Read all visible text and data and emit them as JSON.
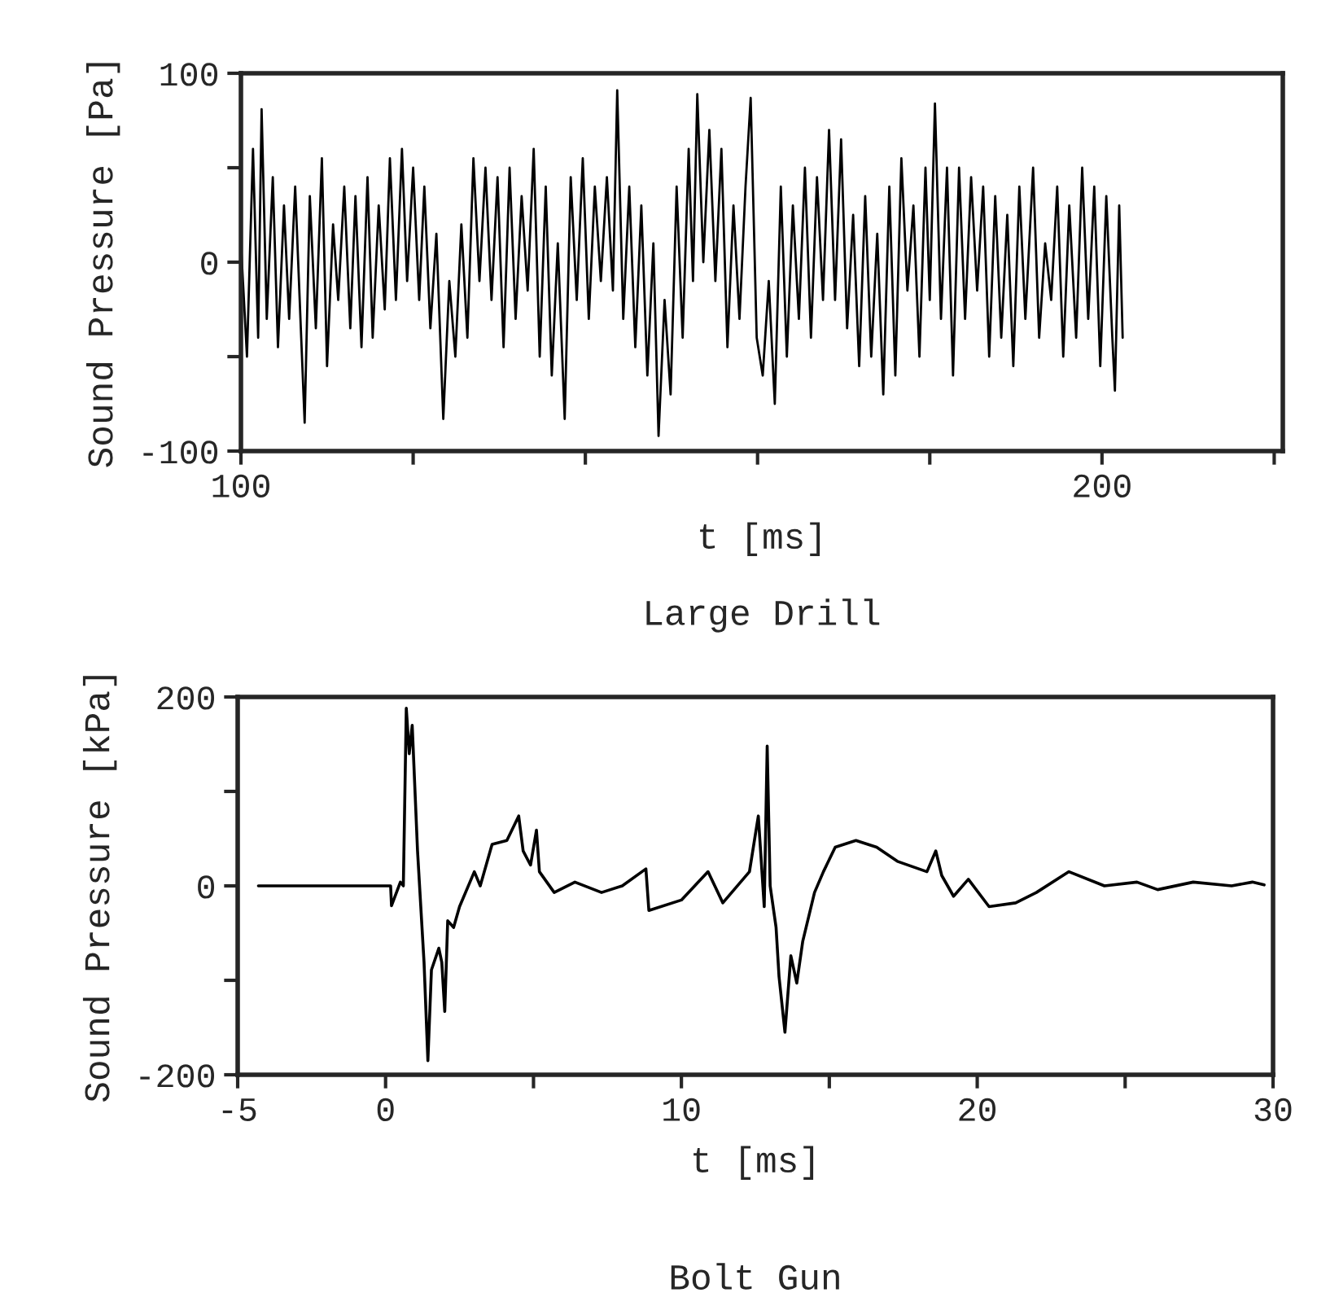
{
  "chart_data": [
    {
      "type": "line",
      "title": "Large Drill",
      "xlabel": "t [ms]",
      "ylabel": "Sound Pressure [Pa]",
      "xlim": [
        100,
        221
      ],
      "xticks": [
        100,
        {
          "value": 120,
          "label": null
        },
        {
          "value": 140,
          "label": null
        },
        {
          "value": 160,
          "label": null
        },
        {
          "value": 180,
          "label": null
        },
        200,
        {
          "value": 220,
          "label": null
        }
      ],
      "ylim": [
        -100,
        100
      ],
      "yticks": [
        -100,
        {
          "value": -50,
          "label": null
        },
        0,
        {
          "value": 50,
          "label": null
        },
        100
      ],
      "grid": false,
      "legend": false,
      "series": [
        {
          "color": "#000000",
          "x": [
            100.0,
            100.7,
            101.4,
            102.0,
            102.4,
            103.0,
            103.7,
            104.3,
            105.0,
            105.6,
            106.3,
            107.0,
            107.4,
            108.0,
            108.7,
            109.4,
            110.0,
            110.7,
            111.3,
            112.0,
            112.7,
            113.3,
            114.0,
            114.7,
            115.3,
            116.0,
            116.7,
            117.3,
            118.0,
            118.7,
            119.3,
            120.0,
            120.7,
            121.3,
            122.0,
            122.7,
            123.5,
            124.2,
            124.9,
            125.6,
            126.3,
            127.0,
            127.7,
            128.4,
            129.1,
            129.8,
            130.5,
            131.2,
            131.9,
            132.6,
            133.3,
            134.0,
            134.7,
            135.4,
            136.1,
            136.8,
            137.6,
            138.3,
            139.0,
            139.7,
            140.4,
            141.1,
            141.8,
            142.5,
            143.2,
            143.7,
            144.4,
            145.1,
            145.8,
            146.5,
            147.2,
            147.9,
            148.5,
            149.2,
            149.9,
            150.6,
            151.3,
            152.0,
            152.5,
            153.0,
            153.7,
            154.4,
            155.1,
            155.8,
            156.5,
            157.2,
            157.9,
            158.6,
            159.2,
            159.9,
            160.6,
            161.3,
            162.0,
            162.7,
            163.4,
            164.1,
            164.8,
            165.5,
            166.2,
            166.9,
            167.6,
            168.3,
            169.0,
            169.7,
            170.4,
            171.1,
            171.8,
            172.5,
            173.2,
            173.9,
            174.6,
            175.3,
            176.0,
            176.7,
            177.4,
            178.1,
            178.8,
            179.5,
            180.0,
            180.6,
            181.3,
            182.0,
            182.7,
            183.4,
            184.1,
            184.8,
            185.5,
            186.2,
            186.9,
            187.6,
            188.3,
            189.0,
            189.7,
            190.4,
            191.1,
            192.0,
            192.7,
            193.4,
            194.1,
            194.8,
            195.5,
            196.2,
            197.0,
            197.7,
            198.4,
            199.1,
            199.8,
            200.5,
            201.2,
            201.5,
            202.0,
            202.4
          ],
          "values": [
            10,
            -50,
            60,
            -40,
            81,
            -30,
            45,
            -45,
            30,
            -30,
            40,
            -40,
            -85,
            35,
            -35,
            55,
            -55,
            20,
            -20,
            40,
            -35,
            35,
            -45,
            45,
            -40,
            30,
            -25,
            55,
            -20,
            60,
            -10,
            50,
            -20,
            40,
            -35,
            15,
            -83,
            -10,
            -50,
            20,
            -40,
            55,
            -10,
            50,
            -20,
            45,
            -45,
            50,
            -30,
            35,
            -15,
            60,
            -50,
            40,
            -60,
            10,
            -83,
            45,
            -20,
            55,
            -30,
            40,
            -10,
            45,
            -15,
            91,
            -30,
            40,
            -45,
            30,
            -60,
            10,
            -92,
            -20,
            -70,
            40,
            -40,
            60,
            -10,
            89,
            0,
            70,
            -10,
            60,
            -45,
            30,
            -30,
            40,
            87,
            -40,
            -60,
            -10,
            -75,
            40,
            -50,
            30,
            -30,
            50,
            -40,
            45,
            -20,
            70,
            -20,
            65,
            -35,
            25,
            -55,
            35,
            -50,
            15,
            -70,
            40,
            -60,
            55,
            -15,
            30,
            -50,
            50,
            -20,
            84,
            -30,
            50,
            -60,
            50,
            -30,
            45,
            -15,
            40,
            -50,
            35,
            -40,
            25,
            -55,
            40,
            -30,
            50,
            -40,
            10,
            -20,
            40,
            -50,
            30,
            -40,
            50,
            -30,
            40,
            -55,
            35,
            -40,
            -68,
            30,
            -40
          ]
        }
      ]
    },
    {
      "type": "line",
      "title": "Bolt Gun",
      "xlabel": "t [ms]",
      "ylabel": "Sound Pressure [kPa]",
      "xlim": [
        -5,
        30
      ],
      "xticks": [
        -5,
        0,
        {
          "value": 5,
          "label": null
        },
        10,
        {
          "value": 15,
          "label": null
        },
        20,
        {
          "value": 25,
          "label": null
        },
        30
      ],
      "ylim": [
        -200,
        200
      ],
      "yticks": [
        -200,
        {
          "value": -100,
          "label": null
        },
        0,
        {
          "value": 100,
          "label": null
        },
        200
      ],
      "grid": false,
      "legend": false,
      "series": [
        {
          "color": "#000000",
          "x": [
            -4.3,
            0.17,
            0.2,
            0.5,
            0.6,
            0.7,
            0.8,
            0.9,
            1.08,
            1.3,
            1.43,
            1.55,
            1.8,
            1.9,
            2.0,
            2.1,
            2.3,
            2.5,
            3.0,
            3.2,
            3.6,
            4.1,
            4.5,
            4.65,
            4.9,
            5.1,
            5.2,
            5.7,
            6.4,
            7.3,
            8.0,
            8.8,
            8.9,
            10.0,
            10.9,
            11.4,
            12.3,
            12.6,
            12.8,
            12.9,
            13.0,
            13.2,
            13.3,
            13.5,
            13.7,
            13.9,
            14.1,
            14.5,
            14.8,
            15.2,
            15.9,
            16.6,
            17.3,
            18.3,
            18.6,
            18.8,
            19.2,
            19.7,
            20.4,
            21.3,
            22.0,
            23.1,
            24.3,
            25.4,
            26.1,
            27.3,
            28.6,
            29.3,
            29.7
          ],
          "values": [
            0,
            0,
            -21,
            4,
            0,
            188,
            140,
            170,
            37,
            -81,
            -185,
            -89,
            -66,
            -81,
            -133,
            -37,
            -44,
            -22,
            15,
            0,
            44,
            48,
            74,
            37,
            22,
            59,
            15,
            -7,
            4,
            -7,
            0,
            18,
            -26,
            -15,
            15,
            -18,
            15,
            74,
            -22,
            148,
            0,
            -44,
            -96,
            -155,
            -74,
            -103,
            -59,
            -7,
            15,
            41,
            48,
            41,
            26,
            15,
            37,
            11,
            -11,
            7,
            -22,
            -18,
            -7,
            15,
            0,
            4,
            -4,
            4,
            0,
            4,
            1
          ]
        }
      ]
    }
  ]
}
